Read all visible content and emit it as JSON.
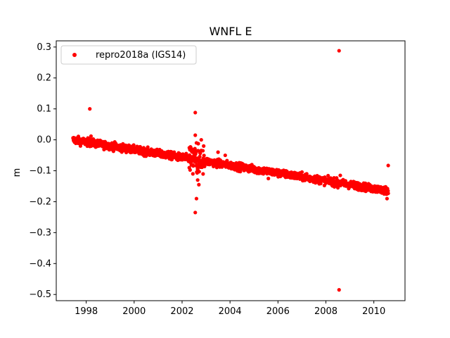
{
  "chart_data": {
    "type": "scatter",
    "title": "WNFL E",
    "xlabel": "",
    "ylabel": "m",
    "xlim": [
      1996.75,
      2011.3
    ],
    "ylim": [
      -0.52,
      0.32
    ],
    "xticks": [
      1998,
      2000,
      2002,
      2004,
      2006,
      2008,
      2010
    ],
    "yticks": [
      0.3,
      0.2,
      0.1,
      0.0,
      -0.1,
      -0.2,
      -0.3,
      -0.4,
      -0.5
    ],
    "ytick_labels": [
      "0.3",
      "0.2",
      "0.1",
      "0.0",
      "−0.1",
      "−0.2",
      "−0.3",
      "−0.4",
      "−0.5"
    ],
    "grid": false,
    "legend_position": "top-left",
    "color": "#ff0000",
    "series": [
      {
        "name": "repro2018a (IGS14)",
        "trend_start": [
          1997.45,
          0.0
        ],
        "trend_end": [
          2010.6,
          -0.165
        ],
        "x_range": [
          1997.45,
          2010.6
        ],
        "noise_amplitude": 0.006,
        "outliers": [
          [
            1998.15,
            0.1
          ],
          [
            1998.2,
            0.012
          ],
          [
            2002.55,
            0.088
          ],
          [
            2002.55,
            0.015
          ],
          [
            2002.55,
            -0.235
          ],
          [
            2002.6,
            -0.19
          ],
          [
            2002.45,
            -0.11
          ],
          [
            2002.7,
            -0.145
          ],
          [
            2002.65,
            -0.13
          ],
          [
            2002.4,
            -0.03
          ],
          [
            2002.8,
            0.0
          ],
          [
            2002.9,
            -0.02
          ],
          [
            2002.3,
            -0.09
          ],
          [
            2002.6,
            -0.01
          ],
          [
            2003.5,
            -0.04
          ],
          [
            2003.8,
            -0.05
          ],
          [
            2005.6,
            -0.125
          ],
          [
            2007.2,
            -0.11
          ],
          [
            2008.55,
            0.288
          ],
          [
            2008.55,
            -0.485
          ],
          [
            2008.6,
            -0.115
          ],
          [
            2010.6,
            -0.083
          ],
          [
            2010.55,
            -0.19
          ],
          [
            2008.5,
            -0.155
          ]
        ]
      }
    ]
  }
}
